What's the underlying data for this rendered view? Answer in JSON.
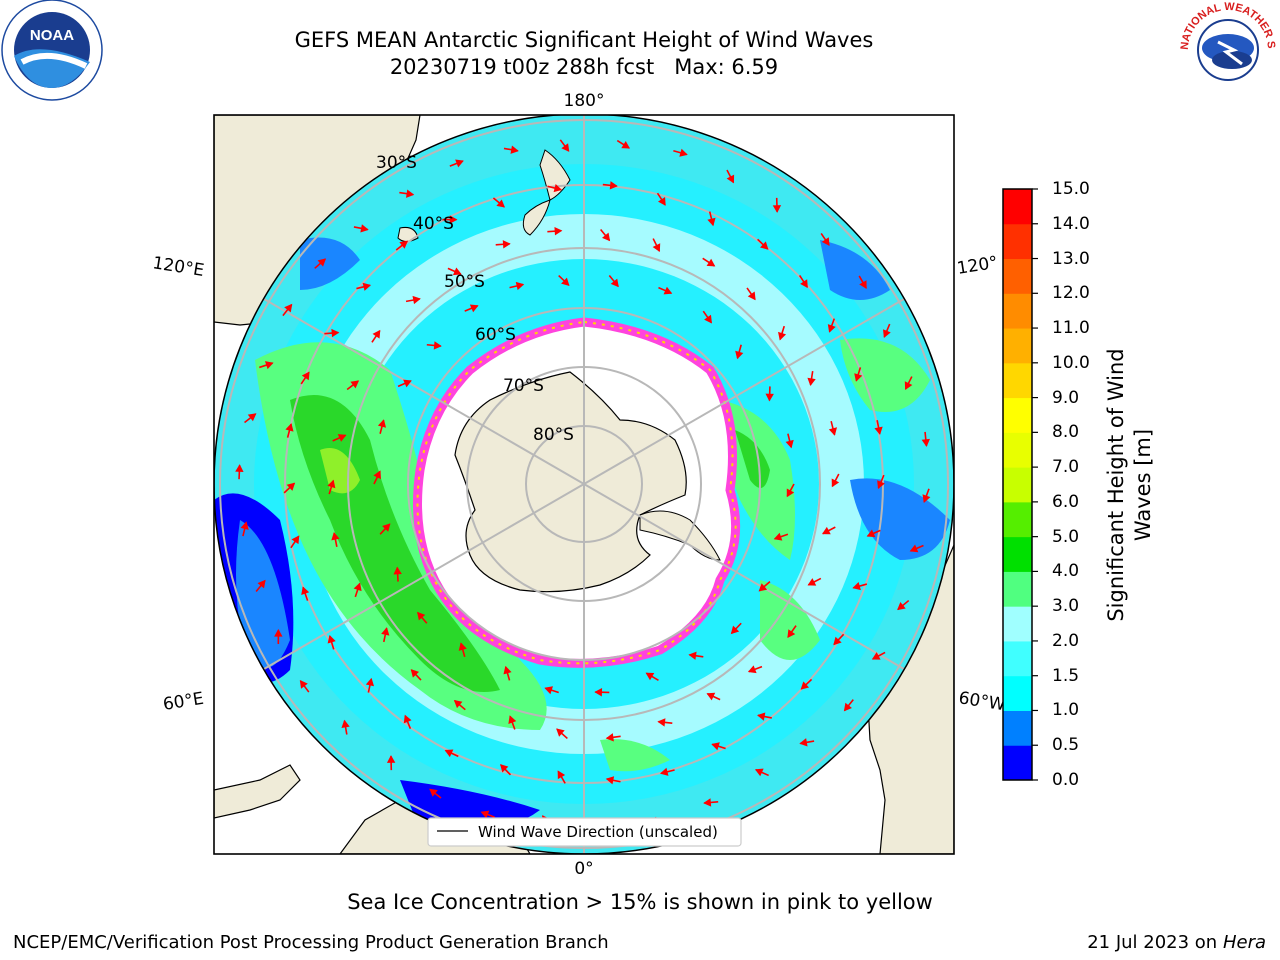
{
  "title": {
    "line1": "GEFS MEAN Antarctic Significant Height of Wind Waves",
    "line2": "20230719 t00z 288h fcst   Max: 6.59"
  },
  "map": {
    "projection": "south polar stereographic",
    "longitude_labels": {
      "top": "180°",
      "bottom": "0°",
      "left_upper": "120°E",
      "left_lower": "60°E",
      "right_upper": "120°",
      "right_lower": "60°W"
    },
    "latitude_labels": [
      "30°S",
      "40°S",
      "50°S",
      "60°S",
      "70°S",
      "80°S"
    ],
    "legend": "Wind Wave Direction (unscaled)",
    "colors": {
      "land": "#efebd8",
      "arrow": "#ff0000",
      "sea_ice": "#ff44dd",
      "grid": "#b8b8b8"
    }
  },
  "colorbar": {
    "label": "Significant Height of Wind Waves [m]",
    "ticks": [
      "0.0",
      "0.5",
      "1.0",
      "1.5",
      "2.0",
      "3.0",
      "4.0",
      "5.0",
      "6.0",
      "7.0",
      "8.0",
      "9.0",
      "10.0",
      "11.0",
      "12.0",
      "13.0",
      "14.0",
      "15.0"
    ],
    "colors": [
      "#0000ff",
      "#0080ff",
      "#00ffff",
      "#40ffff",
      "#a0ffff",
      "#50ff80",
      "#00e000",
      "#55ee00",
      "#c8ff00",
      "#e8ff00",
      "#ffff00",
      "#ffd700",
      "#ffb000",
      "#ff8c00",
      "#ff6000",
      "#ff3000",
      "#ff0000"
    ]
  },
  "footer": {
    "note": "Sea Ice Concentration > 15% is shown in pink to yellow",
    "credit": "NCEP/EMC/Verification Post Processing Product Generation Branch",
    "date": "21 Jul 2023 on ",
    "host": "Hera"
  },
  "logos": {
    "left": "NOAA",
    "right": "NATIONAL WEATHER SERVICE"
  }
}
